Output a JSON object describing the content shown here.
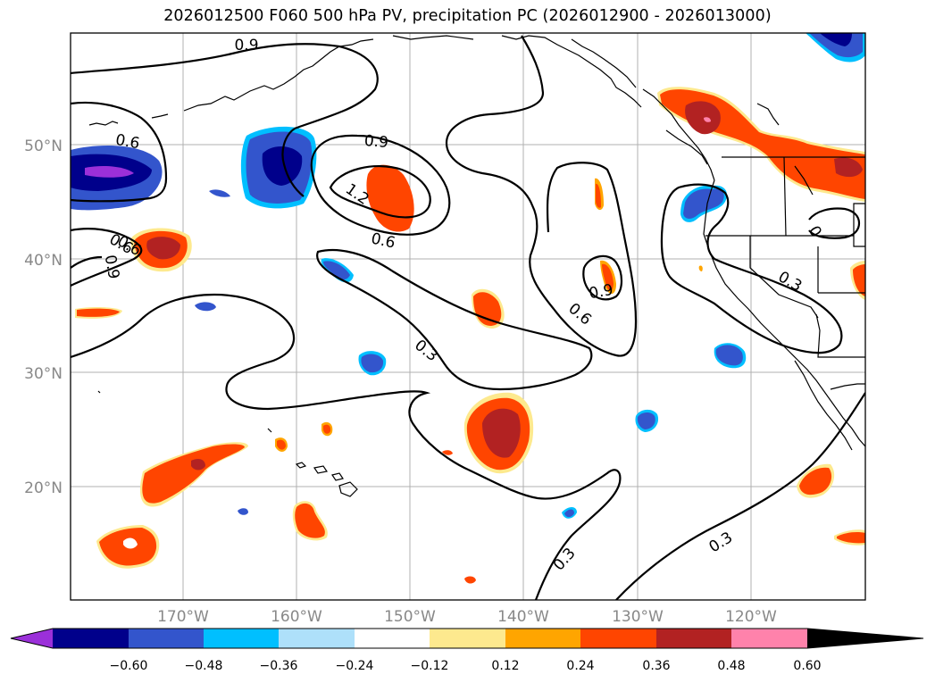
{
  "title": "2026012500 F060 500 hPa PV, precipitation PC (2026012900 - 2026013000)",
  "lat_labels": [
    "50°N",
    "40°N",
    "30°N",
    "20°N"
  ],
  "lon_labels": [
    "170°W",
    "160°W",
    "150°W",
    "140°W",
    "130°W",
    "120°W"
  ],
  "contour_labels": [
    "0.9",
    "0.6",
    "0.9",
    "1.2",
    "0.6",
    "0.6",
    "0.9",
    "0.6",
    "0.9",
    "0.6",
    "0.3",
    "0.3",
    "0.3",
    "0.3",
    "0"
  ],
  "colorbar": {
    "ticks": [
      "−0.60",
      "−0.48",
      "−0.36",
      "−0.24",
      "−0.12",
      "0.12",
      "0.24",
      "0.36",
      "0.48",
      "0.60"
    ],
    "colors": {
      "lt_m060": "#9b30d9",
      "m060_m048": "#00008b",
      "m048_m036": "#3355cc",
      "m036_m024": "#00bfff",
      "m024_m012": "#aee0fa",
      "m012_012": "#ffffff",
      "p012_024": "#fde98e",
      "p024_036": "#ffa500",
      "p036_048": "#ff4500",
      "p048_060": "#b22222",
      "gt_060": "#ff82ab"
    }
  }
}
